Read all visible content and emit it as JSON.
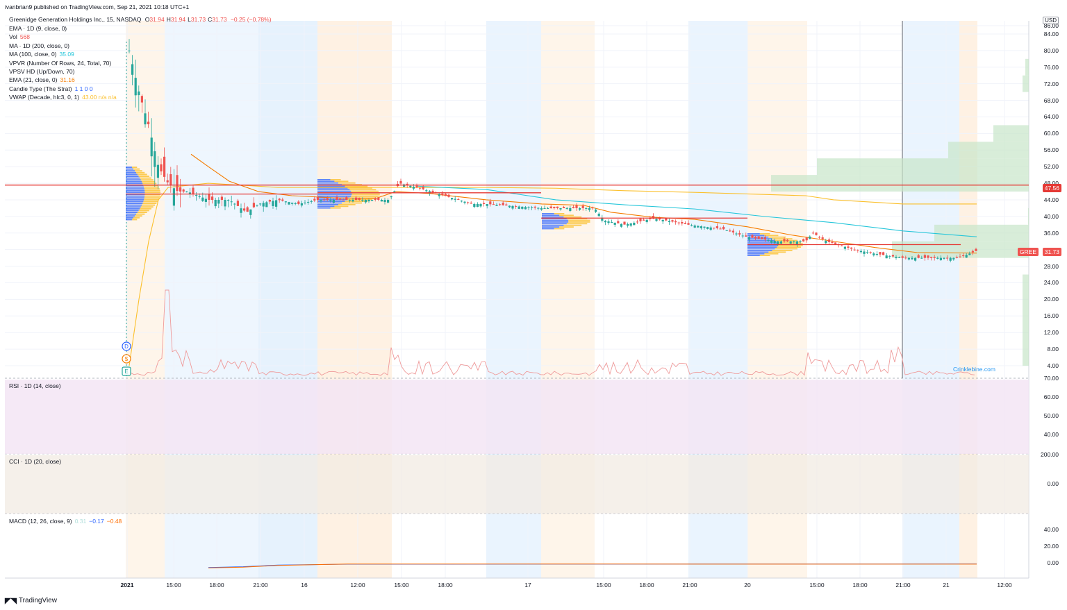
{
  "header": {
    "published": "ivanbrian9 published on TradingView.com, Sep 21, 2021 10:18 UTC+1",
    "symbol": "Greenidge Generation Holdings Inc., 15, NASDAQ",
    "ohlc": [
      {
        "k": "O",
        "v": "31.94"
      },
      {
        "k": "H",
        "v": "31.94"
      },
      {
        "k": "L",
        "v": "31.73"
      },
      {
        "k": "C",
        "v": "31.73"
      }
    ],
    "change": "−0.25 (−0.78%)"
  },
  "legend": [
    {
      "label": "EMA · 1D (9, close, 0)",
      "value": "",
      "color": "#131722"
    },
    {
      "label": "Vol",
      "value": "568",
      "color": "#ef5350"
    },
    {
      "label": "MA · 1D (200, close, 0)",
      "value": "",
      "color": "#131722"
    },
    {
      "label": "MA (100, close, 0)",
      "value": "35.09",
      "color": "#26c6da"
    },
    {
      "label": "VPVR (Number Of Rows, 24, Total, 70)",
      "value": "",
      "color": "#131722"
    },
    {
      "label": "VPSV HD (Up/Down, 70)",
      "value": "",
      "color": "#131722"
    },
    {
      "label": "EMA (21, close, 0)",
      "value": "31.16",
      "color": "#f57c00"
    },
    {
      "label": "Candle Type (The Strat)",
      "value": "1 1 0 0",
      "color": "#2962ff"
    },
    {
      "label": "VWAP (Decade, hlc3, 0, 1)",
      "value": "43.00  n/a  n/a",
      "color": "#fbc02d"
    }
  ],
  "axis": {
    "currency": "USD",
    "price_ticks": [
      "86.00",
      "84.00",
      "80.00",
      "76.00",
      "72.00",
      "68.00",
      "64.00",
      "60.00",
      "56.00",
      "52.00",
      "48.00",
      "44.00",
      "40.00",
      "36.00",
      "32.00",
      "28.00",
      "24.00",
      "20.00",
      "16.00",
      "12.00",
      "8.00",
      "4.00"
    ],
    "time_ticks": [
      "2021",
      "15:00",
      "18:00",
      "21:00",
      "16",
      "12:00",
      "15:00",
      "18:00",
      "17",
      "15:00",
      "18:00",
      "21:00",
      "20",
      "15:00",
      "18:00",
      "21:00",
      "21",
      "12:00"
    ]
  },
  "price_labels": {
    "level": "47.56",
    "level_color": "#e53935",
    "symbol": "GREE",
    "last": "31.73",
    "last_color": "#ef5350"
  },
  "panes": {
    "rsi": {
      "title": "RSI · 1D (14, close)",
      "ticks": [
        "70.00",
        "60.00",
        "50.00",
        "40.00"
      ]
    },
    "cci": {
      "title": "CCI · 1D (20, close)",
      "ticks": [
        "200.00",
        "0.00"
      ]
    },
    "macd": {
      "title": "MACD (12, 26, close, 9)",
      "values": [
        {
          "v": "0.31",
          "color": "#b2dfdb"
        },
        {
          "v": "−0.17",
          "color": "#2962ff"
        },
        {
          "v": "−0.48",
          "color": "#ff6d00"
        }
      ],
      "ticks": [
        "40.00",
        "20.00",
        "0.00"
      ]
    }
  },
  "markers": [
    "D",
    "$",
    "E"
  ],
  "watermark": "Crinklebine.com",
  "footer": {
    "brand": "TradingView"
  },
  "chart_data": {
    "type": "candlestick",
    "symbol": "GREE",
    "interval": "15",
    "ylim": [
      0,
      86
    ],
    "series": [
      {
        "name": "Close (approx.)",
        "values": [
          {
            "t": "2021 open",
            "y": 80
          },
          {
            "t": "14:30",
            "y": 68
          },
          {
            "t": "15:00",
            "y": 56
          },
          {
            "t": "16:00",
            "y": 48
          },
          {
            "t": "17:00",
            "y": 46
          },
          {
            "t": "18:00",
            "y": 44
          },
          {
            "t": "20:00",
            "y": 41
          },
          {
            "t": "21:00",
            "y": 44
          },
          {
            "t": "16 09:30",
            "y": 44
          },
          {
            "t": "16 13:00",
            "y": 44
          },
          {
            "t": "16 15:00",
            "y": 48
          },
          {
            "t": "16 18:00",
            "y": 44
          },
          {
            "t": "16 21:00",
            "y": 43
          },
          {
            "t": "17 13:00",
            "y": 43
          },
          {
            "t": "17 15:00",
            "y": 39
          },
          {
            "t": "17 18:00",
            "y": 40
          },
          {
            "t": "17 21:00",
            "y": 39
          },
          {
            "t": "20 13:00",
            "y": 35
          },
          {
            "t": "20 15:00",
            "y": 35
          },
          {
            "t": "20 18:00",
            "y": 32
          },
          {
            "t": "20 21:00",
            "y": 30
          },
          {
            "t": "21 08:00",
            "y": 31.73
          }
        ]
      },
      {
        "name": "MA (100, close, 0)",
        "last": 35.09
      },
      {
        "name": "EMA (21, close, 0)",
        "last": 31.16
      },
      {
        "name": "VWAP (Decade, hlc3, 0, 1)",
        "last": 43.0
      }
    ],
    "horizontal_level": 47.56
  }
}
